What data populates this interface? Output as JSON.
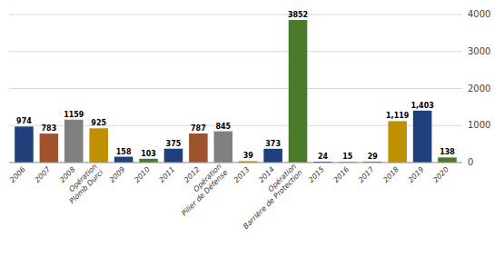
{
  "chart_data": {
    "type": "bar",
    "categories": [
      "2006",
      "2007",
      "2008",
      "Opération\nPlomb Durci",
      "2009",
      "2010",
      "2011",
      "2012",
      "Opération\nPilier de Défense",
      "2013",
      "2014",
      "Opération\nBarrière de Protection",
      "2015",
      "2016",
      "2017",
      "2018",
      "2019",
      "2020"
    ],
    "values": [
      974,
      783,
      1159,
      925,
      158,
      103,
      375,
      787,
      845,
      39,
      373,
      3852,
      24,
      15,
      29,
      1119,
      1403,
      138
    ],
    "value_labels": [
      "974",
      "783",
      "1159",
      "925",
      "158",
      "103",
      "375",
      "787",
      "845",
      "39",
      "373",
      "3852",
      "24",
      "15",
      "29",
      "1,119",
      "1,403",
      "138"
    ],
    "colors": [
      "#1F407A",
      "#A0522D",
      "#808080",
      "#BF9000",
      "#1F407A",
      "#4A7A2A",
      "#1F407A",
      "#A0522D",
      "#808080",
      "#BF9000",
      "#1F407A",
      "#4A7A2A",
      "#1F407A",
      "#A0522D",
      "#808080",
      "#BF9000",
      "#1F407A",
      "#4A7A2A"
    ],
    "ylim": [
      0,
      4000
    ],
    "yticks": [
      0,
      1000,
      2000,
      3000,
      4000
    ],
    "grid": true,
    "data_labels": true
  }
}
